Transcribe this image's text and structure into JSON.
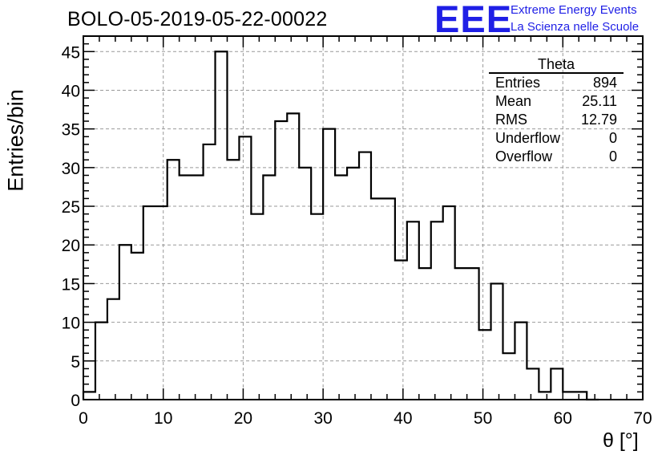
{
  "title": "BOLO-05-2019-05-22-00022",
  "logo": {
    "mark": "EEE",
    "line1": "Extreme Energy Events",
    "line2": "La Scienza nelle Scuole",
    "color": "#1f1fe6"
  },
  "stats": {
    "title": "Theta",
    "rows": [
      {
        "label": "Entries",
        "value": "894"
      },
      {
        "label": "Mean",
        "value": "25.11"
      },
      {
        "label": "RMS",
        "value": "12.79"
      },
      {
        "label": "Underflow",
        "value": "0"
      },
      {
        "label": "Overflow",
        "value": "0"
      }
    ]
  },
  "chart_data": {
    "type": "histogram",
    "title": "BOLO-05-2019-05-22-00022",
    "xlabel": "θ [°]",
    "ylabel": "Entries/bin",
    "xlim": [
      0,
      70
    ],
    "ylim": [
      0,
      47
    ],
    "bin_width": 1.5,
    "bin_start": 0,
    "values": [
      1,
      10,
      13,
      20,
      19,
      25,
      25,
      31,
      29,
      29,
      33,
      45,
      31,
      34,
      24,
      29,
      36,
      37,
      30,
      24,
      35,
      29,
      30,
      32,
      26,
      26,
      18,
      23,
      17,
      23,
      25,
      17,
      17,
      9,
      15,
      6,
      10,
      4,
      1,
      4,
      1,
      1,
      0
    ],
    "xticks": [
      0,
      10,
      20,
      30,
      40,
      50,
      60,
      70
    ],
    "yticks": [
      0,
      5,
      10,
      15,
      20,
      25,
      30,
      35,
      40,
      45
    ],
    "grid": true,
    "line_color": "#000000"
  }
}
